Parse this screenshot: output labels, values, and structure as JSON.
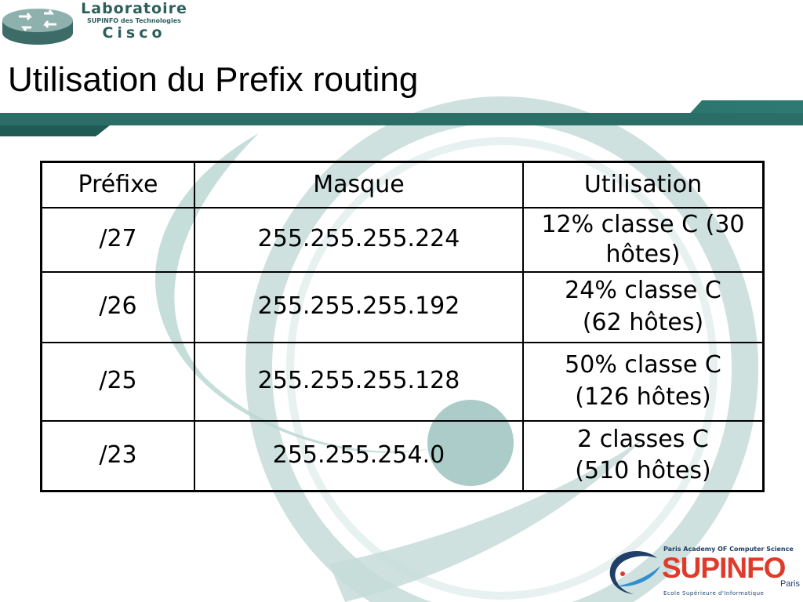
{
  "header": {
    "logo": {
      "line1": "Laboratoire",
      "line2": "SUPINFO des Technologies",
      "line3": "Cisco",
      "icon": "router-icon"
    }
  },
  "slide": {
    "title": "Utilisation du Prefix routing"
  },
  "table": {
    "headers": [
      "Préfixe",
      "Masque",
      "Utilisation"
    ],
    "rows": [
      {
        "prefix": "/27",
        "mask": "255.255.255.224",
        "use_line1": "12% classe C (30",
        "use_line2": "hôtes)"
      },
      {
        "prefix": "/26",
        "mask": "255.255.255.192",
        "use_line1": "24% classe C",
        "use_line2": "(62 hôtes)"
      },
      {
        "prefix": "/25",
        "mask": "255.255.255.128",
        "use_line1": "50% classe C",
        "use_line2": "(126 hôtes)"
      },
      {
        "prefix": "/23",
        "mask": "255.255.254.0",
        "use_line1": "2 classes C",
        "use_line2": "(510 hôtes)"
      }
    ]
  },
  "footer": {
    "top_line": "Paris Academy OF Computer Science",
    "brand": "SUPINFO",
    "city": "Paris",
    "school": "Ecole Supérieure d'Informatique",
    "icon": "swoosh-logo-icon"
  },
  "colors": {
    "teal": "#2c5f5c",
    "teal_light": "#b9d6d3",
    "brand_red": "#e03a2b",
    "brand_blue": "#1f3f66"
  }
}
